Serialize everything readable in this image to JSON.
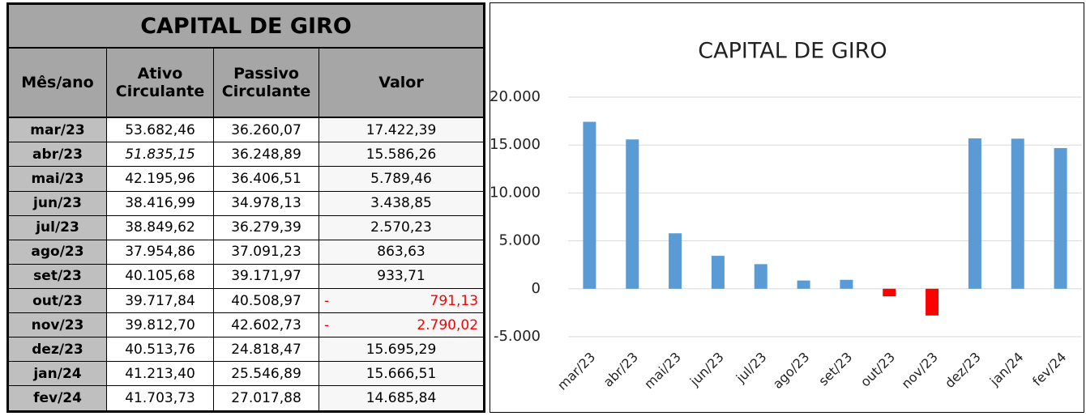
{
  "table": {
    "title": "CAPITAL DE GIRO",
    "headers": [
      "Mês/ano",
      "Ativo Circulante",
      "Passivo Circulante",
      "Valor"
    ],
    "rows": [
      [
        "mar/23",
        "53.682,46",
        "36.260,07",
        "17.422,39"
      ],
      [
        "abr/23",
        "51.835,15",
        "36.248,89",
        "15.586,26"
      ],
      [
        "mai/23",
        "42.195,96",
        "36.406,51",
        "5.789,46"
      ],
      [
        "jun/23",
        "38.416,99",
        "34.978,13",
        "3.438,85"
      ],
      [
        "jul/23",
        "38.849,62",
        "36.279,39",
        "2.570,23"
      ],
      [
        "ago/23",
        "37.954,86",
        "37.091,23",
        "863,63"
      ],
      [
        "set/23",
        "40.105,68",
        "39.171,97",
        "933,71"
      ],
      [
        "out/23",
        "39.717,84",
        "40.508,97",
        {
          "sign": "-",
          "amount": "791,13"
        }
      ],
      [
        "nov/23",
        "39.812,70",
        "42.602,73",
        {
          "sign": "-",
          "amount": "2.790,02"
        }
      ],
      [
        "dez/23",
        "40.513,76",
        "24.818,47",
        "15.695,29"
      ],
      [
        "jan/24",
        "41.213,40",
        "25.546,89",
        "15.666,51"
      ],
      [
        "fev/24",
        "41.703,73",
        "27.017,88",
        "14.685,84"
      ]
    ]
  },
  "chart_data": {
    "type": "bar",
    "title": "CAPITAL DE GIRO",
    "categories": [
      "mar/23",
      "abr/23",
      "mai/23",
      "jun/23",
      "jul/23",
      "ago/23",
      "set/23",
      "out/23",
      "nov/23",
      "dez/23",
      "jan/24",
      "fev/24"
    ],
    "values": [
      17422.39,
      15586.26,
      5789.46,
      3438.85,
      2570.23,
      863.63,
      933.71,
      -791.13,
      -2790.02,
      15695.29,
      15666.51,
      14685.84
    ],
    "color": "#5b9bd5",
    "negative_color": "#ff0000",
    "ylim": [
      -5000,
      20000
    ],
    "yticks": [
      {
        "value": -5000,
        "label": "-5.000"
      },
      0,
      {
        "value": 5000,
        "label": "5.000"
      },
      {
        "value": 10000,
        "label": "10.000"
      },
      {
        "value": 15000,
        "label": "15.000"
      },
      {
        "value": 20000,
        "label": "20.000"
      }
    ],
    "grid": true
  }
}
